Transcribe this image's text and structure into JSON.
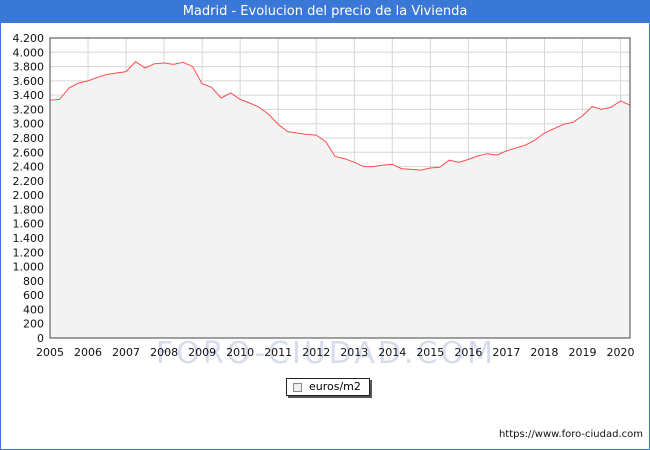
{
  "watermark_text": "FORO-CIUDAD.COM",
  "source_url": "https://www.foro-ciudad.com",
  "chart_data": {
    "type": "area",
    "title": "Madrid - Evolucion del precio de la Vivienda",
    "xlabel": "",
    "ylabel": "",
    "xlim": [
      2005.0,
      2020.25
    ],
    "ylim": [
      0,
      4200
    ],
    "y_ticks": [
      0,
      200,
      400,
      600,
      800,
      1000,
      1200,
      1400,
      1600,
      1800,
      2000,
      2200,
      2400,
      2600,
      2800,
      3000,
      3200,
      3400,
      3600,
      3800,
      4000,
      4200
    ],
    "y_tick_labels": [
      "0",
      "200",
      "400",
      "600",
      "800",
      "1.000",
      "1.200",
      "1.400",
      "1.600",
      "1.800",
      "2.000",
      "2.200",
      "2.400",
      "2.600",
      "2.800",
      "3.000",
      "3.200",
      "3.400",
      "3.600",
      "3.800",
      "4.000",
      "4.200"
    ],
    "x_ticks": [
      2005,
      2006,
      2007,
      2008,
      2009,
      2010,
      2011,
      2012,
      2013,
      2014,
      2015,
      2016,
      2017,
      2018,
      2019,
      2020
    ],
    "x_tick_labels": [
      "2005",
      "2006",
      "2007",
      "2008",
      "2009",
      "2010",
      "2011",
      "2012",
      "2013",
      "2014",
      "2015",
      "2016",
      "2017",
      "2018",
      "2019",
      "2020"
    ],
    "grid": true,
    "legend_position": "bottom-center",
    "colors": {
      "line": "#ff4d4d",
      "fill": "#f3f3f3",
      "grid": "#d6d6d6"
    },
    "series": [
      {
        "name": "euros/m2",
        "x": [
          2005.0,
          2005.25,
          2005.5,
          2005.75,
          2006.0,
          2006.25,
          2006.5,
          2006.75,
          2007.0,
          2007.25,
          2007.5,
          2007.75,
          2008.0,
          2008.25,
          2008.5,
          2008.75,
          2009.0,
          2009.25,
          2009.5,
          2009.75,
          2010.0,
          2010.25,
          2010.5,
          2010.75,
          2011.0,
          2011.25,
          2011.5,
          2011.75,
          2012.0,
          2012.25,
          2012.5,
          2012.75,
          2013.0,
          2013.25,
          2013.5,
          2013.75,
          2014.0,
          2014.25,
          2014.5,
          2014.75,
          2015.0,
          2015.25,
          2015.5,
          2015.75,
          2016.0,
          2016.25,
          2016.5,
          2016.75,
          2017.0,
          2017.25,
          2017.5,
          2017.75,
          2018.0,
          2018.25,
          2018.5,
          2018.75,
          2019.0,
          2019.25,
          2019.5,
          2019.75,
          2020.0,
          2020.25
        ],
        "values": [
          3330,
          3340,
          3500,
          3570,
          3600,
          3650,
          3690,
          3710,
          3730,
          3870,
          3780,
          3840,
          3850,
          3830,
          3860,
          3800,
          3560,
          3510,
          3360,
          3430,
          3340,
          3290,
          3230,
          3130,
          2990,
          2890,
          2870,
          2850,
          2840,
          2750,
          2540,
          2510,
          2460,
          2400,
          2400,
          2420,
          2430,
          2370,
          2360,
          2350,
          2380,
          2390,
          2490,
          2460,
          2500,
          2550,
          2580,
          2560,
          2620,
          2660,
          2700,
          2770,
          2870,
          2930,
          2990,
          3020,
          3110,
          3240,
          3200,
          3230,
          3320,
          3260
        ]
      }
    ]
  }
}
